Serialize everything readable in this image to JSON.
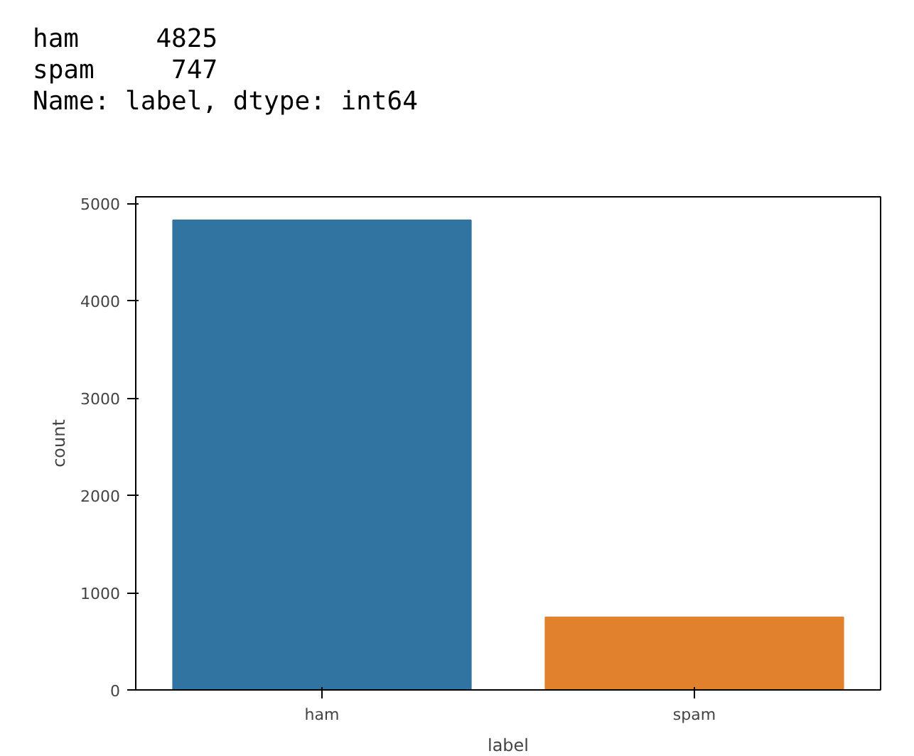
{
  "chart_data": {
    "type": "bar",
    "annotations": [
      "ham     4825\nspam     747\nName: label, dtype: int64"
    ],
    "categories": [
      "ham",
      "spam"
    ],
    "values": [
      4825,
      747
    ],
    "colors": [
      "#3274a1",
      "#e1812c"
    ],
    "xlabel": "label",
    "ylabel": "count",
    "ylim": [
      0,
      5066
    ],
    "yticks": [
      0,
      1000,
      2000,
      3000,
      4000,
      5000
    ],
    "grid": false
  }
}
